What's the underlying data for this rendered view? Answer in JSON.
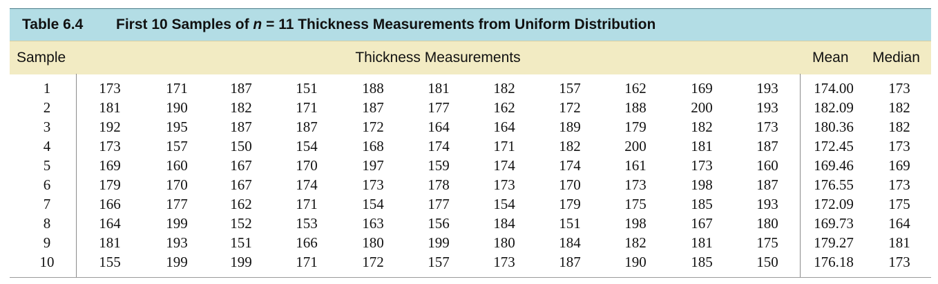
{
  "table": {
    "label": "Table 6.4",
    "title_prefix": "First 10 Samples of",
    "title_var": "n",
    "title_suffix": "= 11 Thickness Measurements from Uniform Distribution",
    "headers": {
      "sample": "Sample",
      "measurements": "Thickness Measurements",
      "mean": "Mean",
      "median": "Median"
    },
    "rows": [
      {
        "sample": "1",
        "values": [
          "173",
          "171",
          "187",
          "151",
          "188",
          "181",
          "182",
          "157",
          "162",
          "169",
          "193"
        ],
        "mean": "174.00",
        "median": "173"
      },
      {
        "sample": "2",
        "values": [
          "181",
          "190",
          "182",
          "171",
          "187",
          "177",
          "162",
          "172",
          "188",
          "200",
          "193"
        ],
        "mean": "182.09",
        "median": "182"
      },
      {
        "sample": "3",
        "values": [
          "192",
          "195",
          "187",
          "187",
          "172",
          "164",
          "164",
          "189",
          "179",
          "182",
          "173"
        ],
        "mean": "180.36",
        "median": "182"
      },
      {
        "sample": "4",
        "values": [
          "173",
          "157",
          "150",
          "154",
          "168",
          "174",
          "171",
          "182",
          "200",
          "181",
          "187"
        ],
        "mean": "172.45",
        "median": "173"
      },
      {
        "sample": "5",
        "values": [
          "169",
          "160",
          "167",
          "170",
          "197",
          "159",
          "174",
          "174",
          "161",
          "173",
          "160"
        ],
        "mean": "169.46",
        "median": "169"
      },
      {
        "sample": "6",
        "values": [
          "179",
          "170",
          "167",
          "174",
          "173",
          "178",
          "173",
          "170",
          "173",
          "198",
          "187"
        ],
        "mean": "176.55",
        "median": "173"
      },
      {
        "sample": "7",
        "values": [
          "166",
          "177",
          "162",
          "171",
          "154",
          "177",
          "154",
          "179",
          "175",
          "185",
          "193"
        ],
        "mean": "172.09",
        "median": "175"
      },
      {
        "sample": "8",
        "values": [
          "164",
          "199",
          "152",
          "153",
          "163",
          "156",
          "184",
          "151",
          "198",
          "167",
          "180"
        ],
        "mean": "169.73",
        "median": "164"
      },
      {
        "sample": "9",
        "values": [
          "181",
          "193",
          "151",
          "166",
          "180",
          "199",
          "180",
          "184",
          "182",
          "181",
          "175"
        ],
        "mean": "179.27",
        "median": "181"
      },
      {
        "sample": "10",
        "values": [
          "155",
          "199",
          "199",
          "171",
          "172",
          "157",
          "173",
          "187",
          "190",
          "185",
          "150"
        ],
        "mean": "176.18",
        "median": "173"
      }
    ]
  }
}
